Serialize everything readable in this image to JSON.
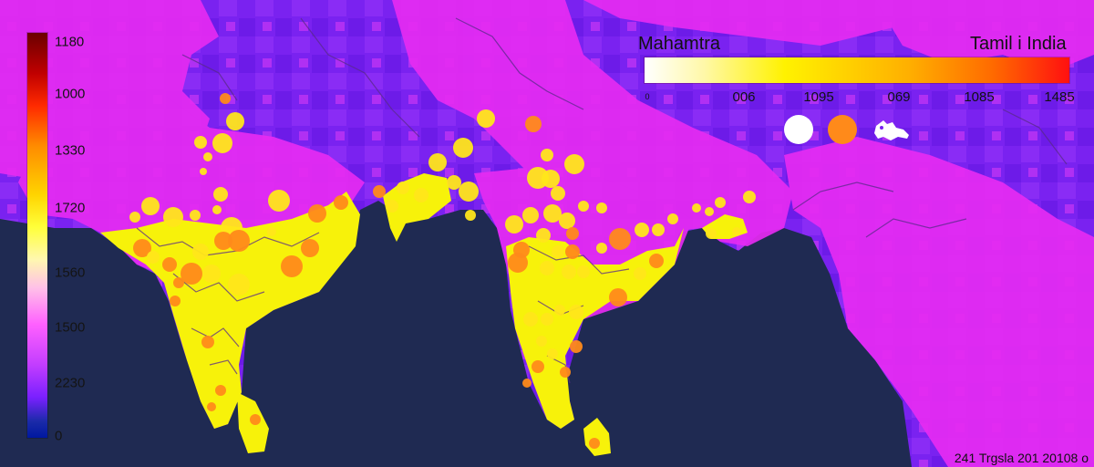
{
  "map": {
    "colors": {
      "ocean": "#1f2a52",
      "background_land": "#7a22f0",
      "region_magenta": "#e62bf2",
      "region_yellow": "#f7f20a",
      "marker_yellow": "#ffe61a",
      "marker_orange": "#ff8a1a",
      "border": "#5a2a8a"
    }
  },
  "scale": {
    "ticks": [
      "1180",
      "1000",
      "1330",
      "1720",
      "1560",
      "1500",
      "2230",
      "0"
    ],
    "colors": [
      "#6b0000",
      "#ff2a00",
      "#ff8c00",
      "#ffd400",
      "#fff7b0",
      "#ff60ff",
      "#7a20ff",
      "#0018a0"
    ]
  },
  "legend": {
    "title_left": "Mahamtra",
    "title_right": "Tamil i India",
    "ticks": [
      "0",
      "006",
      "1095",
      "069",
      "1085",
      "1485"
    ],
    "size_swatches": [
      {
        "color": "#ffffff",
        "icon": "white-circle"
      },
      {
        "color": "#ff8a1a",
        "icon": "orange-circle"
      },
      {
        "color": "#ffffff",
        "icon": "map-pin-icon"
      }
    ]
  },
  "footer": {
    "text": "241 Trgsla 201 20108 o"
  }
}
